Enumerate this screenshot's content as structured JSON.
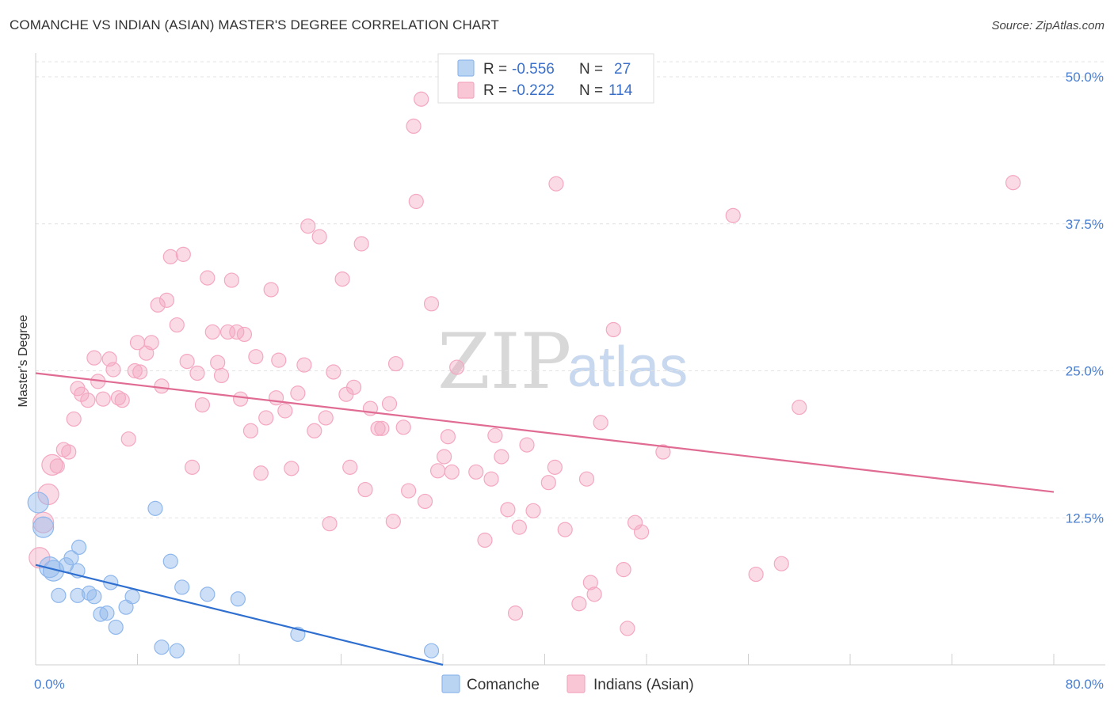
{
  "title": "COMANCHE VS INDIAN (ASIAN) MASTER'S DEGREE CORRELATION CHART",
  "source": "Source: ZipAtlas.com",
  "watermark": {
    "zip": "ZIP",
    "atlas": "atlas"
  },
  "legend": {
    "r_label": "R =",
    "n_label": "N =",
    "rows": [
      {
        "r": "-0.556",
        "n": "27"
      },
      {
        "r": "-0.222",
        "n": "114"
      }
    ]
  },
  "chart_data": {
    "type": "scatter",
    "title": "COMANCHE VS INDIAN (ASIAN) MASTER'S DEGREE CORRELATION CHART",
    "xlabel": "",
    "ylabel": "Master's Degree",
    "xlim": [
      0,
      80
    ],
    "ylim": [
      0,
      50
    ],
    "x_tick_labels": [
      "0.0%",
      "80.0%"
    ],
    "y_tick_values": [
      12.5,
      25.0,
      37.5,
      50.0
    ],
    "y_tick_labels": [
      "12.5%",
      "25.0%",
      "37.5%",
      "50.0%"
    ],
    "grid": true,
    "series": [
      {
        "name": "Comanche",
        "color": "#8fb7ec",
        "line_color": "#2f6fd0",
        "trend": {
          "x0": 0,
          "y0": 8.5,
          "x1": 32,
          "y1": 0
        },
        "points": [
          [
            0.2,
            13.8
          ],
          [
            0.6,
            11.7
          ],
          [
            1.1,
            8.3
          ],
          [
            1.4,
            8.0
          ],
          [
            1.8,
            5.9
          ],
          [
            2.4,
            8.5
          ],
          [
            2.8,
            9.1
          ],
          [
            3.3,
            8.0
          ],
          [
            3.4,
            10.0
          ],
          [
            3.3,
            5.9
          ],
          [
            4.2,
            6.1
          ],
          [
            4.6,
            5.8
          ],
          [
            5.1,
            4.3
          ],
          [
            5.6,
            4.4
          ],
          [
            5.9,
            7.0
          ],
          [
            6.3,
            3.2
          ],
          [
            7.1,
            4.9
          ],
          [
            7.6,
            5.8
          ],
          [
            9.4,
            13.3
          ],
          [
            9.9,
            1.5
          ],
          [
            10.6,
            8.8
          ],
          [
            11.1,
            1.2
          ],
          [
            11.5,
            6.6
          ],
          [
            13.5,
            6.0
          ],
          [
            15.9,
            5.6
          ],
          [
            20.6,
            2.6
          ],
          [
            31.1,
            1.2
          ]
        ]
      },
      {
        "name": "Indians (Asian)",
        "color": "#f4a8c0",
        "line_color": "#e06b93",
        "trend": {
          "x0": 0,
          "y0": 24.8,
          "x1": 80,
          "y1": 14.7
        },
        "points": [
          [
            0.3,
            9.1
          ],
          [
            0.6,
            12.1
          ],
          [
            1.0,
            14.5
          ],
          [
            1.3,
            17.0
          ],
          [
            1.7,
            16.9
          ],
          [
            2.2,
            18.3
          ],
          [
            2.6,
            18.1
          ],
          [
            3.0,
            20.9
          ],
          [
            3.3,
            23.5
          ],
          [
            3.6,
            23.0
          ],
          [
            4.1,
            22.5
          ],
          [
            4.6,
            26.1
          ],
          [
            4.9,
            24.1
          ],
          [
            5.3,
            22.6
          ],
          [
            5.8,
            26.0
          ],
          [
            6.1,
            25.1
          ],
          [
            6.5,
            22.7
          ],
          [
            6.8,
            22.5
          ],
          [
            7.3,
            19.2
          ],
          [
            7.8,
            25.0
          ],
          [
            8.0,
            27.4
          ],
          [
            8.2,
            24.9
          ],
          [
            8.7,
            26.5
          ],
          [
            9.1,
            27.4
          ],
          [
            9.6,
            30.6
          ],
          [
            9.9,
            23.7
          ],
          [
            10.3,
            31.0
          ],
          [
            10.6,
            34.7
          ],
          [
            11.1,
            28.9
          ],
          [
            11.6,
            34.9
          ],
          [
            11.9,
            25.8
          ],
          [
            12.3,
            16.8
          ],
          [
            12.7,
            24.8
          ],
          [
            13.1,
            22.1
          ],
          [
            13.5,
            32.9
          ],
          [
            13.9,
            28.3
          ],
          [
            14.3,
            25.7
          ],
          [
            14.6,
            24.6
          ],
          [
            15.1,
            28.3
          ],
          [
            15.4,
            32.7
          ],
          [
            15.8,
            28.3
          ],
          [
            16.1,
            22.6
          ],
          [
            16.4,
            28.1
          ],
          [
            16.9,
            19.9
          ],
          [
            17.3,
            26.2
          ],
          [
            17.7,
            16.3
          ],
          [
            18.1,
            21.0
          ],
          [
            18.5,
            31.9
          ],
          [
            18.9,
            22.7
          ],
          [
            19.1,
            25.9
          ],
          [
            19.6,
            21.6
          ],
          [
            20.1,
            16.7
          ],
          [
            20.6,
            23.1
          ],
          [
            21.1,
            25.5
          ],
          [
            21.4,
            37.3
          ],
          [
            21.9,
            19.9
          ],
          [
            22.3,
            36.4
          ],
          [
            22.8,
            21.0
          ],
          [
            23.1,
            12.0
          ],
          [
            23.4,
            24.9
          ],
          [
            24.1,
            32.8
          ],
          [
            24.4,
            23.0
          ],
          [
            24.7,
            16.8
          ],
          [
            25.0,
            23.6
          ],
          [
            25.6,
            35.8
          ],
          [
            25.9,
            14.9
          ],
          [
            26.3,
            21.8
          ],
          [
            26.9,
            20.1
          ],
          [
            27.2,
            20.1
          ],
          [
            27.8,
            22.2
          ],
          [
            28.1,
            12.2
          ],
          [
            28.3,
            25.6
          ],
          [
            28.9,
            20.2
          ],
          [
            29.3,
            14.8
          ],
          [
            29.7,
            45.8
          ],
          [
            29.9,
            39.4
          ],
          [
            30.3,
            48.1
          ],
          [
            30.6,
            13.9
          ],
          [
            31.1,
            30.7
          ],
          [
            31.6,
            16.5
          ],
          [
            32.1,
            17.7
          ],
          [
            32.4,
            19.4
          ],
          [
            32.7,
            16.4
          ],
          [
            33.1,
            25.3
          ],
          [
            34.6,
            16.4
          ],
          [
            35.3,
            10.6
          ],
          [
            35.8,
            15.8
          ],
          [
            36.1,
            19.5
          ],
          [
            36.6,
            17.7
          ],
          [
            37.1,
            13.2
          ],
          [
            37.7,
            4.4
          ],
          [
            38.0,
            11.7
          ],
          [
            38.6,
            18.7
          ],
          [
            39.1,
            13.1
          ],
          [
            40.3,
            15.5
          ],
          [
            40.8,
            16.8
          ],
          [
            40.9,
            40.9
          ],
          [
            41.6,
            11.5
          ],
          [
            42.7,
            5.2
          ],
          [
            43.3,
            15.8
          ],
          [
            43.6,
            7.0
          ],
          [
            43.9,
            6.0
          ],
          [
            44.4,
            20.6
          ],
          [
            45.4,
            28.5
          ],
          [
            46.2,
            8.1
          ],
          [
            46.5,
            3.1
          ],
          [
            47.1,
            12.1
          ],
          [
            47.6,
            11.3
          ],
          [
            49.3,
            18.1
          ],
          [
            54.8,
            38.2
          ],
          [
            56.6,
            7.7
          ],
          [
            58.6,
            8.6
          ],
          [
            76.8,
            41.0
          ],
          [
            60.0,
            21.9
          ]
        ]
      }
    ]
  },
  "bottom_legend": [
    {
      "label": "Comanche",
      "color": "#b9d3f3",
      "border": "#8fb7ec"
    },
    {
      "label": "Indians (Asian)",
      "color": "#f8c6d5",
      "border": "#f4a8c0"
    }
  ]
}
